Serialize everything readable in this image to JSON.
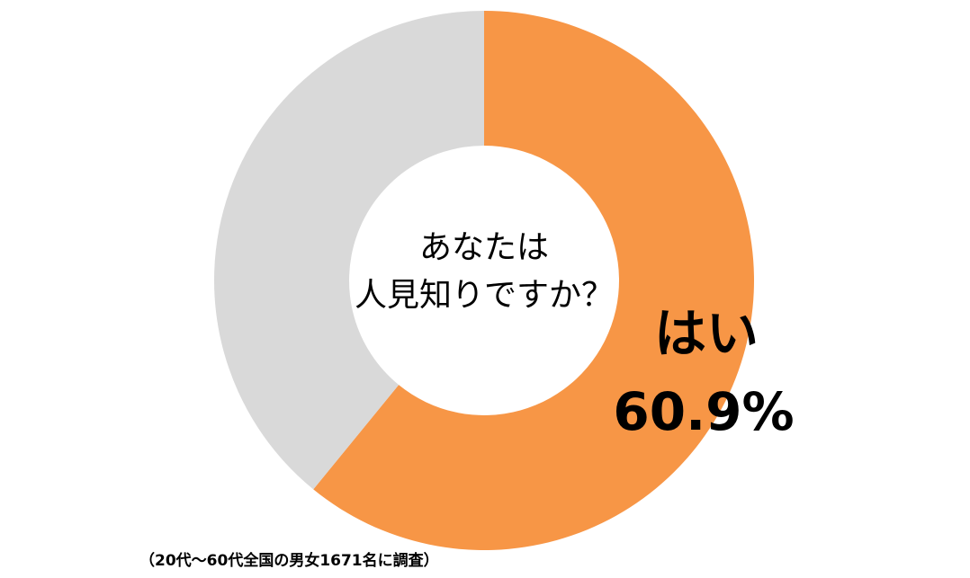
{
  "chart_data": {
    "type": "donut",
    "title": [
      "あなたは",
      "人見知りですか？"
    ],
    "categories": [
      "はい",
      null
    ],
    "values": [
      60.9,
      39.1
    ],
    "value_labels": [
      "60.9%",
      null
    ],
    "colors": [
      "#f79646",
      "#d9d9d9"
    ],
    "note": "（20代～60代全国の男女1671名に調査）"
  }
}
